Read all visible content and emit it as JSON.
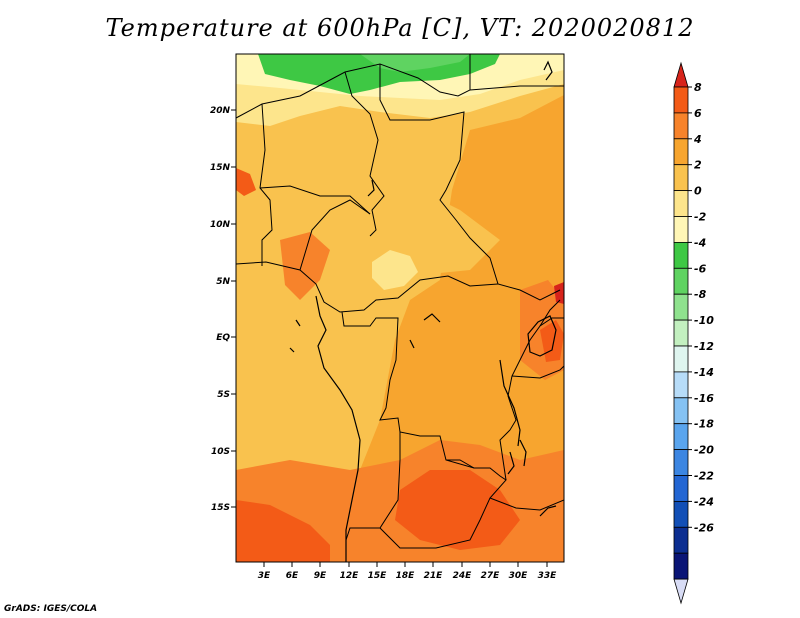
{
  "title": "Temperature at 600hPa [C], VT: 2020020812",
  "credit": "GrADS: IGES/COLA",
  "map": {
    "lat_labels": [
      "20N",
      "15N",
      "10N",
      "5N",
      "EQ",
      "5S",
      "10S",
      "15S"
    ],
    "lon_labels": [
      "3E",
      "6E",
      "9E",
      "12E",
      "15E",
      "18E",
      "21E",
      "24E",
      "27E",
      "30E",
      "33E"
    ]
  },
  "colorbar": {
    "levels": [
      "8",
      "6",
      "4",
      "2",
      "0",
      "-2",
      "-4",
      "-6",
      "-8",
      "-10",
      "-12",
      "-14",
      "-16",
      "-18",
      "-20",
      "-22",
      "-24",
      "-26"
    ],
    "colors": [
      "#d7241b",
      "#f35b17",
      "#f7832b",
      "#f7a52f",
      "#f9c24e",
      "#fde58c",
      "#fff6b6",
      "#3ec844",
      "#5fd361",
      "#8fe28e",
      "#c3f0c0",
      "#dff5ef",
      "#b7dcf8",
      "#85c2f3",
      "#5aa5ee",
      "#3c86e2",
      "#2366d3",
      "#124fb6",
      "#0c2e91",
      "#0a1576",
      "#d8dcf5"
    ]
  },
  "colors": {
    "warm_dark": "#f35b17",
    "warm_mid": "#f7a52f",
    "warm_light": "#f9c24e",
    "pale": "#fde58c",
    "cold_green": "#3ec844"
  }
}
